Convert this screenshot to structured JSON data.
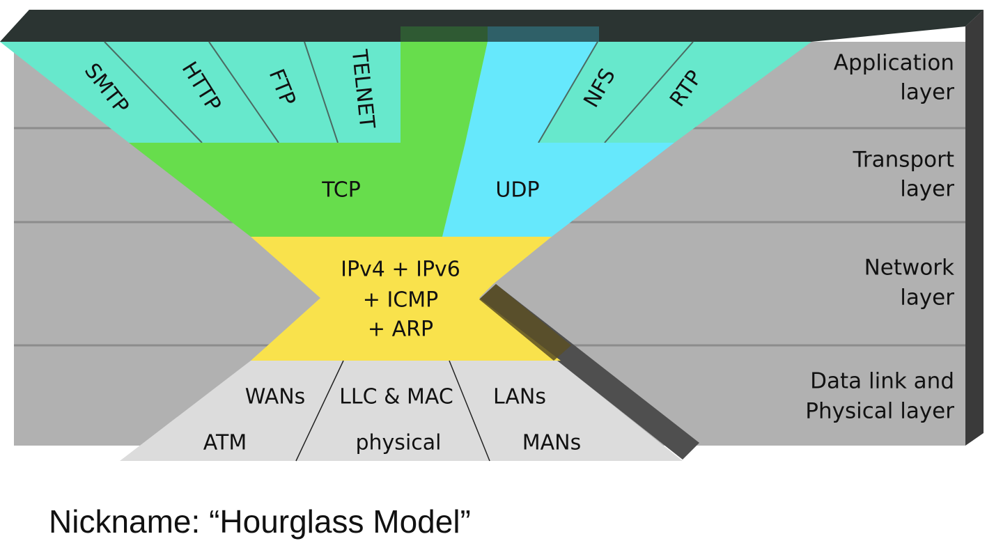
{
  "colors": {
    "grey": "#b1b1b1",
    "grey_line": "#8c8c8c",
    "frame_top": "#2b3432",
    "frame_side": "#3a3a3a",
    "app_teal": "#67e8cc",
    "tcp_green": "#67dd4c",
    "udp_cyan": "#66e8fc",
    "ip_yellow": "#f9e24c",
    "datalink_grey": "#dcdcdc",
    "dark_bar": "#4f4f4f"
  },
  "application": {
    "protocols": [
      "SMTP",
      "HTTP",
      "FTP",
      "TELNET",
      "NFS",
      "RTP"
    ]
  },
  "transport": {
    "tcp": "TCP",
    "udp": "UDP"
  },
  "network": {
    "lines": [
      "IPv4 + IPv6",
      "+ ICMP",
      "+ ARP"
    ]
  },
  "datalink": {
    "wans": "WANs",
    "llc_mac": "LLC & MAC",
    "lans": "LANs",
    "atm": "ATM",
    "physical": "physical",
    "mans": "MANs"
  },
  "layers": [
    {
      "line1": "Application",
      "line2": "layer"
    },
    {
      "line1": "Transport",
      "line2": "layer"
    },
    {
      "line1": "Network",
      "line2": "layer"
    },
    {
      "line1": "Data link and",
      "line2": "Physical layer"
    }
  ],
  "caption": "Nickname: “Hourglass Model”"
}
